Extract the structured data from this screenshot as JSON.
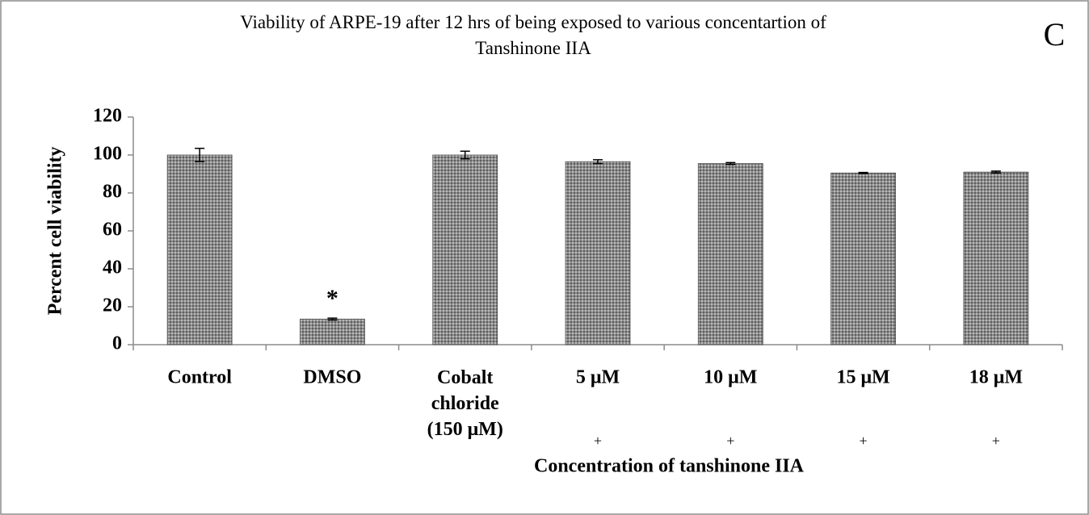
{
  "chart_data": {
    "type": "bar",
    "title": "Viability of ARPE-19 after 12 hrs of  being exposed to various concentartion of\nTanshinone IIA",
    "panel_label": "C",
    "y_label": "Percent cell viability",
    "x_label": "Concentration of tanshinone IIA",
    "categories": [
      "Control",
      "DMSO",
      "Cobalt\nchloride\n(150 μM)",
      "5 μM",
      "10 μM",
      "15 μM",
      "18 μM"
    ],
    "values": [
      100,
      13.5,
      100,
      96.5,
      95.5,
      90.5,
      91
    ],
    "errors": [
      3.5,
      0.5,
      2,
      1,
      0.5,
      0.3,
      0.5
    ],
    "color": "#7f7f7f",
    "ylim": [
      0,
      120
    ],
    "yticks": [
      0,
      20,
      40,
      60,
      80,
      100,
      120
    ],
    "annotations": [
      {
        "text": "*",
        "category": 1
      },
      {
        "text": "+",
        "category": 3
      },
      {
        "text": "+",
        "category": 4
      },
      {
        "text": "+",
        "category": 5
      },
      {
        "text": "+",
        "category": 6
      }
    ]
  }
}
